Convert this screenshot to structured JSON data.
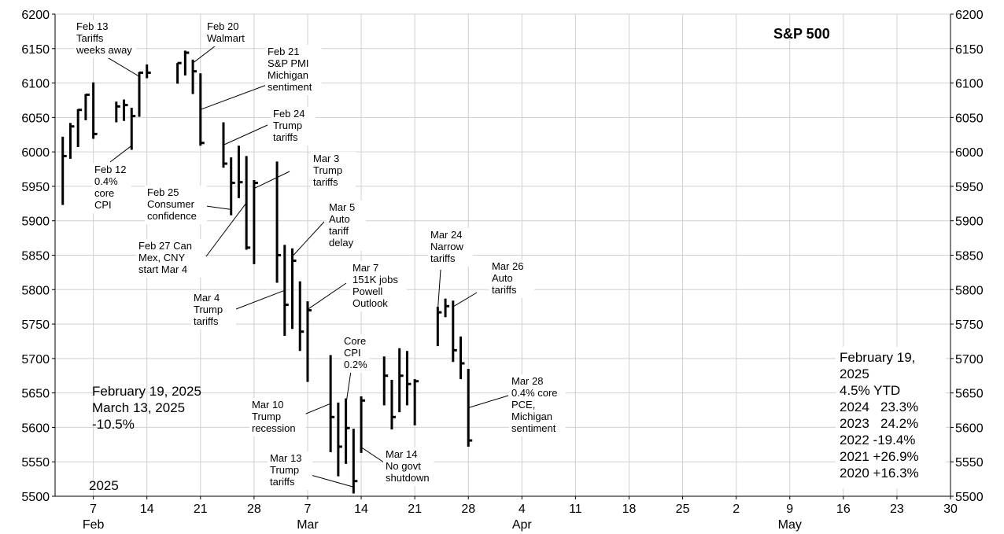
{
  "chart_data": {
    "type": "ohlc",
    "title": "S&P 500",
    "year_label": "2025",
    "ylim": [
      5500,
      6200
    ],
    "y_ticks": [
      5500,
      5550,
      5600,
      5650,
      5700,
      5750,
      5800,
      5850,
      5900,
      5950,
      6000,
      6050,
      6100,
      6150,
      6200
    ],
    "x_range": [
      "2025-02-02",
      "2025-05-30"
    ],
    "x_ticks": [
      {
        "date": "2025-02-07",
        "label": "7"
      },
      {
        "date": "2025-02-14",
        "label": "14"
      },
      {
        "date": "2025-02-21",
        "label": "21"
      },
      {
        "date": "2025-02-28",
        "label": "28"
      },
      {
        "date": "2025-03-07",
        "label": "7"
      },
      {
        "date": "2025-03-14",
        "label": "14"
      },
      {
        "date": "2025-03-21",
        "label": "21"
      },
      {
        "date": "2025-03-28",
        "label": "28"
      },
      {
        "date": "2025-04-04",
        "label": "4"
      },
      {
        "date": "2025-04-11",
        "label": "11"
      },
      {
        "date": "2025-04-18",
        "label": "18"
      },
      {
        "date": "2025-04-25",
        "label": "25"
      },
      {
        "date": "2025-05-02",
        "label": "2"
      },
      {
        "date": "2025-05-09",
        "label": "9"
      },
      {
        "date": "2025-05-16",
        "label": "16"
      },
      {
        "date": "2025-05-23",
        "label": "23"
      },
      {
        "date": "2025-05-30",
        "label": "30"
      }
    ],
    "month_labels": [
      {
        "date": "2025-02-07",
        "label": "Feb"
      },
      {
        "date": "2025-03-07",
        "label": "Mar"
      },
      {
        "date": "2025-04-04",
        "label": "Apr"
      },
      {
        "date": "2025-05-09",
        "label": "May"
      }
    ],
    "bars": [
      {
        "date": "2025-02-03",
        "high": 6022,
        "low": 5923,
        "close": 5994
      },
      {
        "date": "2025-02-04",
        "high": 6042,
        "low": 5990,
        "close": 6037
      },
      {
        "date": "2025-02-05",
        "high": 6062,
        "low": 6007,
        "close": 6061
      },
      {
        "date": "2025-02-06",
        "high": 6084,
        "low": 6046,
        "close": 6083
      },
      {
        "date": "2025-02-07",
        "high": 6101,
        "low": 6019,
        "close": 6026
      },
      {
        "date": "2025-02-10",
        "high": 6073,
        "low": 6043,
        "close": 6066
      },
      {
        "date": "2025-02-11",
        "high": 6076,
        "low": 6045,
        "close": 6068
      },
      {
        "date": "2025-02-12",
        "high": 6064,
        "low": 6003,
        "close": 6052
      },
      {
        "date": "2025-02-13",
        "high": 6116,
        "low": 6051,
        "close": 6115
      },
      {
        "date": "2025-02-14",
        "high": 6127,
        "low": 6107,
        "close": 6115
      },
      {
        "date": "2025-02-18",
        "high": 6129,
        "low": 6099,
        "close": 6129
      },
      {
        "date": "2025-02-19",
        "high": 6147,
        "low": 6111,
        "close": 6144
      },
      {
        "date": "2025-02-20",
        "high": 6134,
        "low": 6084,
        "close": 6117
      },
      {
        "date": "2025-02-21",
        "high": 6114,
        "low": 6009,
        "close": 6013
      },
      {
        "date": "2025-02-24",
        "high": 6043,
        "low": 5977,
        "close": 5983
      },
      {
        "date": "2025-02-25",
        "high": 5992,
        "low": 5908,
        "close": 5955
      },
      {
        "date": "2025-02-26",
        "high": 6009,
        "low": 5933,
        "close": 5956
      },
      {
        "date": "2025-02-27",
        "high": 5994,
        "low": 5858,
        "close": 5861
      },
      {
        "date": "2025-02-28",
        "high": 5959,
        "low": 5837,
        "close": 5955
      },
      {
        "date": "2025-03-03",
        "high": 5986,
        "low": 5810,
        "close": 5850
      },
      {
        "date": "2025-03-04",
        "high": 5865,
        "low": 5733,
        "close": 5778
      },
      {
        "date": "2025-03-05",
        "high": 5860,
        "low": 5743,
        "close": 5842
      },
      {
        "date": "2025-03-06",
        "high": 5812,
        "low": 5711,
        "close": 5739
      },
      {
        "date": "2025-03-07",
        "high": 5783,
        "low": 5666,
        "close": 5770
      },
      {
        "date": "2025-03-10",
        "high": 5705,
        "low": 5564,
        "close": 5615
      },
      {
        "date": "2025-03-11",
        "high": 5636,
        "low": 5529,
        "close": 5572
      },
      {
        "date": "2025-03-12",
        "high": 5642,
        "low": 5547,
        "close": 5599
      },
      {
        "date": "2025-03-13",
        "high": 5598,
        "low": 5504,
        "close": 5522
      },
      {
        "date": "2025-03-14",
        "high": 5645,
        "low": 5563,
        "close": 5639
      },
      {
        "date": "2025-03-17",
        "high": 5703,
        "low": 5632,
        "close": 5675
      },
      {
        "date": "2025-03-18",
        "high": 5669,
        "low": 5597,
        "close": 5615
      },
      {
        "date": "2025-03-19",
        "high": 5715,
        "low": 5622,
        "close": 5675
      },
      {
        "date": "2025-03-20",
        "high": 5711,
        "low": 5632,
        "close": 5663
      },
      {
        "date": "2025-03-21",
        "high": 5670,
        "low": 5603,
        "close": 5667
      },
      {
        "date": "2025-03-24",
        "high": 5775,
        "low": 5718,
        "close": 5767
      },
      {
        "date": "2025-03-25",
        "high": 5787,
        "low": 5760,
        "close": 5776
      },
      {
        "date": "2025-03-26",
        "high": 5784,
        "low": 5695,
        "close": 5712
      },
      {
        "date": "2025-03-27",
        "high": 5732,
        "low": 5670,
        "close": 5693
      },
      {
        "date": "2025-03-28",
        "high": 5685,
        "low": 5572,
        "close": 5581
      }
    ],
    "annotations": [
      {
        "lines": [
          "Feb 13",
          "Tariffs",
          "weeks away"
        ],
        "target": "2025-02-13"
      },
      {
        "lines": [
          "Feb 20",
          "Walmart"
        ],
        "target": "2025-02-20"
      },
      {
        "lines": [
          "Feb 21",
          "S&P PMI",
          "Michigan",
          "sentiment"
        ],
        "target": "2025-02-21"
      },
      {
        "lines": [
          "Feb 12",
          "0.4%",
          "core",
          "CPI"
        ],
        "target": "2025-02-12"
      },
      {
        "lines": [
          "Feb 24",
          "Trump",
          "tariffs"
        ],
        "target": "2025-02-24"
      },
      {
        "lines": [
          "Feb 25",
          "Consumer",
          "confidence"
        ],
        "target": "2025-02-25"
      },
      {
        "lines": [
          "Mar 3",
          "Trump",
          "tariffs"
        ],
        "target": "2025-02-28"
      },
      {
        "lines": [
          "Feb 27 Can",
          "Mex, CNY",
          "start Mar 4"
        ],
        "target": "2025-02-27"
      },
      {
        "lines": [
          "Mar 5",
          "Auto",
          "tariff",
          "delay"
        ],
        "target": "2025-03-05"
      },
      {
        "lines": [
          "Mar 7",
          "151K jobs",
          "Powell",
          "Outlook"
        ],
        "target": "2025-03-07"
      },
      {
        "lines": [
          "Mar 4",
          "Trump",
          "tariffs"
        ],
        "target": "2025-03-04"
      },
      {
        "lines": [
          "Core",
          "CPI",
          "0.2%"
        ],
        "target": "2025-03-12"
      },
      {
        "lines": [
          "Mar 10",
          "Trump",
          "recession"
        ],
        "target": "2025-03-10"
      },
      {
        "lines": [
          "Mar 13",
          "Trump",
          "tariffs"
        ],
        "target": "2025-03-13"
      },
      {
        "lines": [
          "Mar 14",
          "No govt",
          "shutdown"
        ],
        "target": "2025-03-14"
      },
      {
        "lines": [
          "Mar 24",
          "Narrow",
          "tariffs"
        ],
        "target": "2025-03-24"
      },
      {
        "lines": [
          "Mar 26",
          "Auto",
          "tariffs"
        ],
        "target": "2025-03-26"
      },
      {
        "lines": [
          "Mar 28",
          "0.4% core",
          "PCE,",
          "Michigan",
          "sentiment"
        ],
        "target": "2025-03-28"
      }
    ],
    "info_left": [
      "February 19, 2025",
      "March 13, 2025",
      "-10.5%"
    ],
    "info_right": [
      "February 19,",
      "2025",
      "4.5% YTD",
      "2024   23.3%",
      "2023   24.2%",
      "2022 -19.4%",
      "2021 +26.9%",
      "2020 +16.3%"
    ]
  }
}
